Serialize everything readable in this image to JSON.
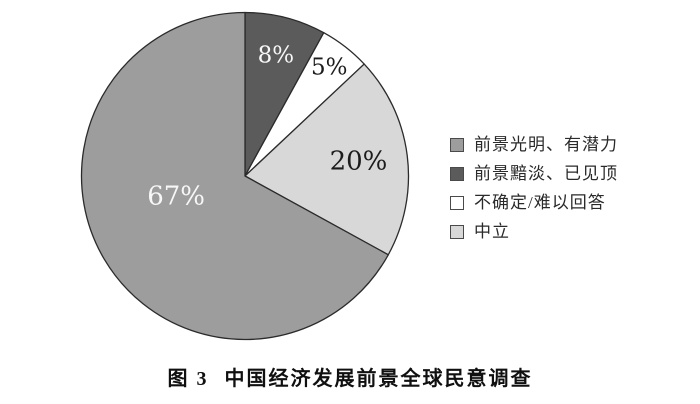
{
  "chart_data": {
    "type": "pie",
    "caption_prefix": "图 3",
    "title": "中国经济发展前景全球民意调查",
    "value_suffix": "%",
    "slices": [
      {
        "label": "前景光明、有潜力",
        "value": 67,
        "color": "#9d9d9d",
        "text_color": "#f7f7f7"
      },
      {
        "label": "前景黯淡、已见顶",
        "value": 8,
        "color": "#5b5b5b",
        "text_color": "#f7f7f7"
      },
      {
        "label": "不确定/难以回答",
        "value": 5,
        "color": "#ffffff",
        "text_color": "#1c1c1c"
      },
      {
        "label": "中立",
        "value": 20,
        "color": "#d8d8d8",
        "text_color": "#1c1c1c"
      }
    ],
    "draw_order": [
      1,
      2,
      3,
      0
    ],
    "start_angle_deg": 0,
    "direction": "clockwise",
    "stroke_color": "#2b2b2b",
    "legend_position": "right",
    "grid": false
  }
}
